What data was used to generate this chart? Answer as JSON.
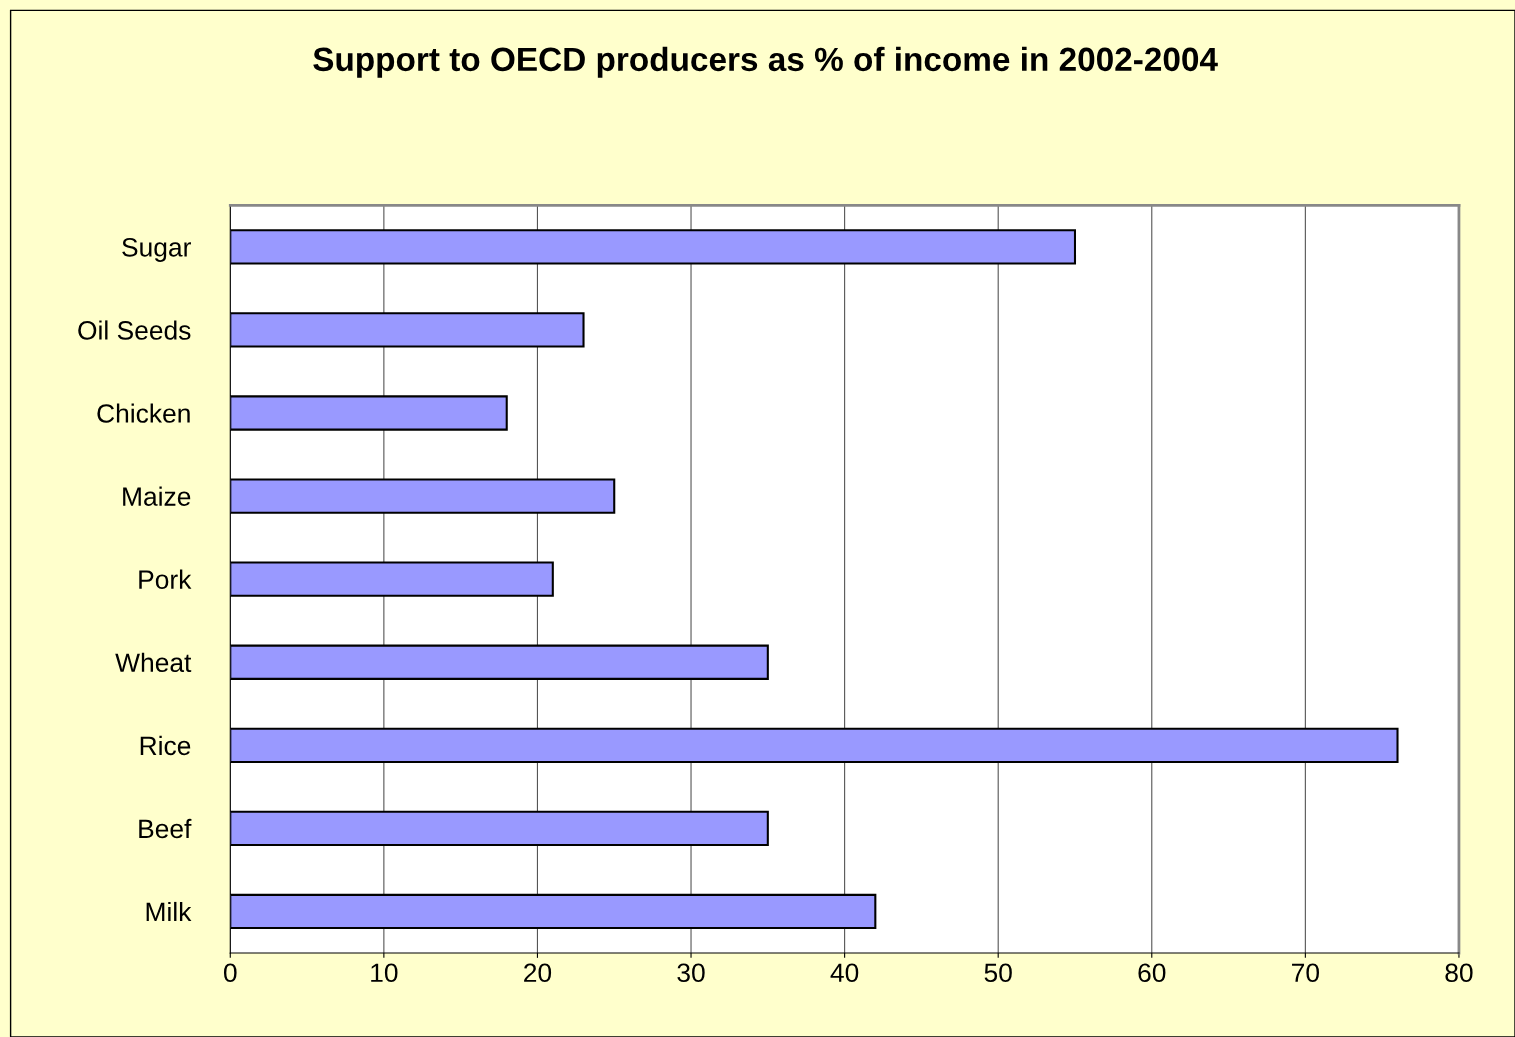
{
  "chart_data": {
    "type": "bar",
    "orientation": "horizontal",
    "title": "Support to OECD producers as % of income in 2002-2004",
    "categories": [
      "Sugar",
      "Oil Seeds",
      "Chicken",
      "Maize",
      "Pork",
      "Wheat",
      "Rice",
      "Beef",
      "Milk"
    ],
    "values": [
      55,
      23,
      18,
      25,
      21,
      35,
      76,
      35,
      42
    ],
    "color": "#9999ff",
    "xlim": [
      0,
      80
    ],
    "xticks": [
      0,
      10,
      20,
      30,
      40,
      50,
      60,
      70,
      80
    ],
    "grid": "x",
    "legend": false
  }
}
